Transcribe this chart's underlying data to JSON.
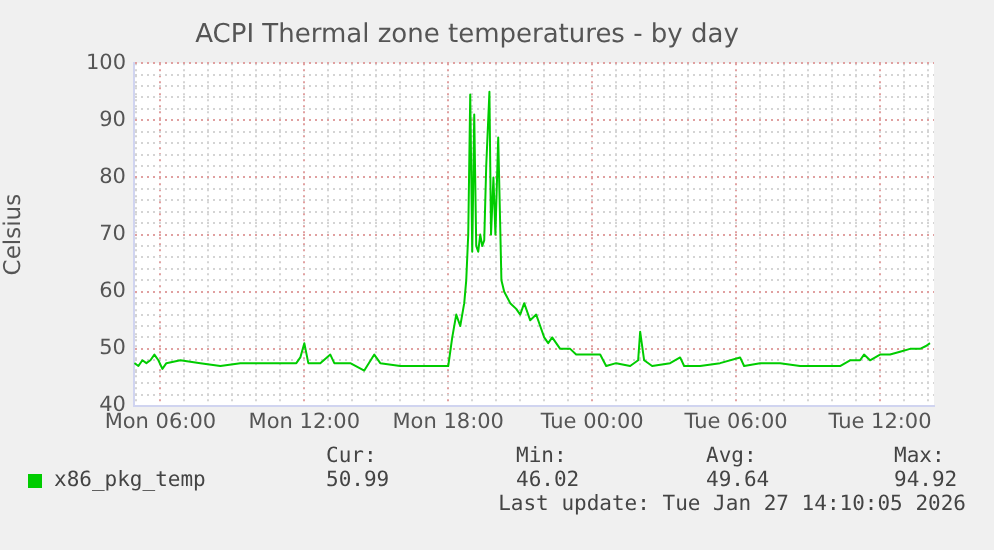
{
  "chart_data": {
    "type": "line",
    "title": "ACPI Thermal zone temperatures - by day",
    "ylabel": "Celsius",
    "x": [
      "2026-01-26T04:55",
      "2026-01-26T05:05",
      "2026-01-26T05:15",
      "2026-01-26T05:25",
      "2026-01-26T05:35",
      "2026-01-26T05:45",
      "2026-01-26T05:55",
      "2026-01-26T06:05",
      "2026-01-26T06:15",
      "2026-01-26T06:50",
      "2026-01-26T07:40",
      "2026-01-26T08:30",
      "2026-01-26T09:20",
      "2026-01-26T10:10",
      "2026-01-26T11:00",
      "2026-01-26T11:40",
      "2026-01-26T11:50",
      "2026-01-26T12:00",
      "2026-01-26T12:10",
      "2026-01-26T12:40",
      "2026-01-26T13:05",
      "2026-01-26T13:15",
      "2026-01-26T13:55",
      "2026-01-26T14:30",
      "2026-01-26T14:55",
      "2026-01-26T15:10",
      "2026-01-26T16:00",
      "2026-01-26T16:50",
      "2026-01-26T17:40",
      "2026-01-26T18:00",
      "2026-01-26T18:10",
      "2026-01-26T18:20",
      "2026-01-26T18:30",
      "2026-01-26T18:40",
      "2026-01-26T18:45",
      "2026-01-26T18:50",
      "2026-01-26T18:55",
      "2026-01-26T19:00",
      "2026-01-26T19:05",
      "2026-01-26T19:10",
      "2026-01-26T19:15",
      "2026-01-26T19:20",
      "2026-01-26T19:25",
      "2026-01-26T19:30",
      "2026-01-26T19:35",
      "2026-01-26T19:43",
      "2026-01-26T19:47",
      "2026-01-26T19:53",
      "2026-01-26T19:58",
      "2026-01-26T20:05",
      "2026-01-26T20:13",
      "2026-01-26T20:20",
      "2026-01-26T20:35",
      "2026-01-26T20:50",
      "2026-01-26T21:00",
      "2026-01-26T21:10",
      "2026-01-26T21:25",
      "2026-01-26T21:40",
      "2026-01-26T21:50",
      "2026-01-26T22:00",
      "2026-01-26T22:10",
      "2026-01-26T22:20",
      "2026-01-26T22:40",
      "2026-01-26T23:05",
      "2026-01-26T23:20",
      "2026-01-26T23:55",
      "2026-01-27T00:20",
      "2026-01-27T00:35",
      "2026-01-27T01:00",
      "2026-01-27T01:35",
      "2026-01-27T01:55",
      "2026-01-27T02:00",
      "2026-01-27T02:10",
      "2026-01-27T02:30",
      "2026-01-27T03:15",
      "2026-01-27T03:40",
      "2026-01-27T03:50",
      "2026-01-27T04:30",
      "2026-01-27T05:20",
      "2026-01-27T06:10",
      "2026-01-27T06:20",
      "2026-01-27T07:00",
      "2026-01-27T07:50",
      "2026-01-27T08:40",
      "2026-01-27T09:30",
      "2026-01-27T10:20",
      "2026-01-27T10:45",
      "2026-01-27T11:10",
      "2026-01-27T11:20",
      "2026-01-27T11:35",
      "2026-01-27T12:00",
      "2026-01-27T12:25",
      "2026-01-27T12:50",
      "2026-01-27T13:15",
      "2026-01-27T13:40",
      "2026-01-27T13:55",
      "2026-01-27T14:05"
    ],
    "series": [
      {
        "name": "x86_pkg_temp",
        "color": "#00cc00",
        "values": [
          47.5,
          47,
          48,
          47.5,
          48,
          49,
          48,
          46.5,
          47.5,
          48,
          47.5,
          47,
          47.5,
          47.5,
          47.5,
          47.5,
          48.5,
          51,
          47.5,
          47.5,
          49,
          47.5,
          47.5,
          46.2,
          49,
          47.5,
          47,
          47,
          47,
          47,
          52,
          56,
          54,
          58,
          62,
          70,
          94.5,
          67,
          91,
          68,
          67,
          70,
          68,
          69,
          82,
          95,
          70,
          80,
          70,
          87,
          62,
          60,
          58,
          57,
          56,
          58,
          55,
          56,
          54,
          52,
          51,
          52,
          50,
          50,
          49,
          49,
          49,
          47,
          47.5,
          47,
          48,
          53,
          48,
          47,
          47.5,
          48.5,
          47,
          47,
          47.5,
          48.5,
          47,
          47.5,
          47.5,
          47,
          47,
          47,
          48,
          48,
          49,
          48,
          49,
          49,
          49.5,
          50,
          50,
          50.5,
          51
        ]
      }
    ],
    "xlim": [
      "2026-01-26T04:54",
      "2026-01-27T14:15"
    ],
    "xticks": [
      {
        "value": "2026-01-26T05:00",
        "label": null
      },
      {
        "value": "2026-01-26T06:00",
        "label": "Mon 06:00"
      },
      {
        "value": "2026-01-26T07:00",
        "label": null
      },
      {
        "value": "2026-01-26T08:00",
        "label": null
      },
      {
        "value": "2026-01-26T09:00",
        "label": null
      },
      {
        "value": "2026-01-26T10:00",
        "label": null
      },
      {
        "value": "2026-01-26T11:00",
        "label": null
      },
      {
        "value": "2026-01-26T12:00",
        "label": "Mon 12:00"
      },
      {
        "value": "2026-01-26T13:00",
        "label": null
      },
      {
        "value": "2026-01-26T14:00",
        "label": null
      },
      {
        "value": "2026-01-26T15:00",
        "label": null
      },
      {
        "value": "2026-01-26T16:00",
        "label": null
      },
      {
        "value": "2026-01-26T17:00",
        "label": null
      },
      {
        "value": "2026-01-26T18:00",
        "label": "Mon 18:00"
      },
      {
        "value": "2026-01-26T19:00",
        "label": null
      },
      {
        "value": "2026-01-26T20:00",
        "label": null
      },
      {
        "value": "2026-01-26T21:00",
        "label": null
      },
      {
        "value": "2026-01-26T22:00",
        "label": null
      },
      {
        "value": "2026-01-26T23:00",
        "label": null
      },
      {
        "value": "2026-01-27T00:00",
        "label": "Tue 00:00"
      },
      {
        "value": "2026-01-27T01:00",
        "label": null
      },
      {
        "value": "2026-01-27T02:00",
        "label": null
      },
      {
        "value": "2026-01-27T03:00",
        "label": null
      },
      {
        "value": "2026-01-27T04:00",
        "label": null
      },
      {
        "value": "2026-01-27T05:00",
        "label": null
      },
      {
        "value": "2026-01-27T06:00",
        "label": "Tue 06:00"
      },
      {
        "value": "2026-01-27T07:00",
        "label": null
      },
      {
        "value": "2026-01-27T08:00",
        "label": null
      },
      {
        "value": "2026-01-27T09:00",
        "label": null
      },
      {
        "value": "2026-01-27T10:00",
        "label": null
      },
      {
        "value": "2026-01-27T11:00",
        "label": null
      },
      {
        "value": "2026-01-27T12:00",
        "label": "Tue 12:00"
      },
      {
        "value": "2026-01-27T13:00",
        "label": null
      },
      {
        "value": "2026-01-27T14:00",
        "label": null
      }
    ],
    "ylim": [
      40,
      100
    ],
    "yticks": [
      40,
      {
        "value": 42,
        "label": null
      },
      {
        "value": 44,
        "label": null
      },
      {
        "value": 46,
        "label": null
      },
      {
        "value": 48,
        "label": null
      },
      50,
      {
        "value": 52,
        "label": null
      },
      {
        "value": 54,
        "label": null
      },
      {
        "value": 56,
        "label": null
      },
      {
        "value": 58,
        "label": null
      },
      60,
      {
        "value": 62,
        "label": null
      },
      {
        "value": 64,
        "label": null
      },
      {
        "value": 66,
        "label": null
      },
      {
        "value": 68,
        "label": null
      },
      70,
      {
        "value": 72,
        "label": null
      },
      {
        "value": 74,
        "label": null
      },
      {
        "value": 76,
        "label": null
      },
      {
        "value": 78,
        "label": null
      },
      80,
      {
        "value": 82,
        "label": null
      },
      {
        "value": 84,
        "label": null
      },
      {
        "value": 86,
        "label": null
      },
      {
        "value": 88,
        "label": null
      },
      90,
      {
        "value": 92,
        "label": null
      },
      {
        "value": 94,
        "label": null
      },
      {
        "value": 96,
        "label": null
      },
      {
        "value": 98,
        "label": null
      },
      100
    ],
    "grid": true,
    "legend": "bottom left",
    "marker": "none",
    "line_style": "solid",
    "annotations": [
      "Cur:",
      "50.99",
      "Min:",
      "46.02",
      "Avg:",
      "49.64",
      "Max:",
      "94.92",
      "Last update: Tue Jan 27 14:10:05 2026"
    ]
  }
}
